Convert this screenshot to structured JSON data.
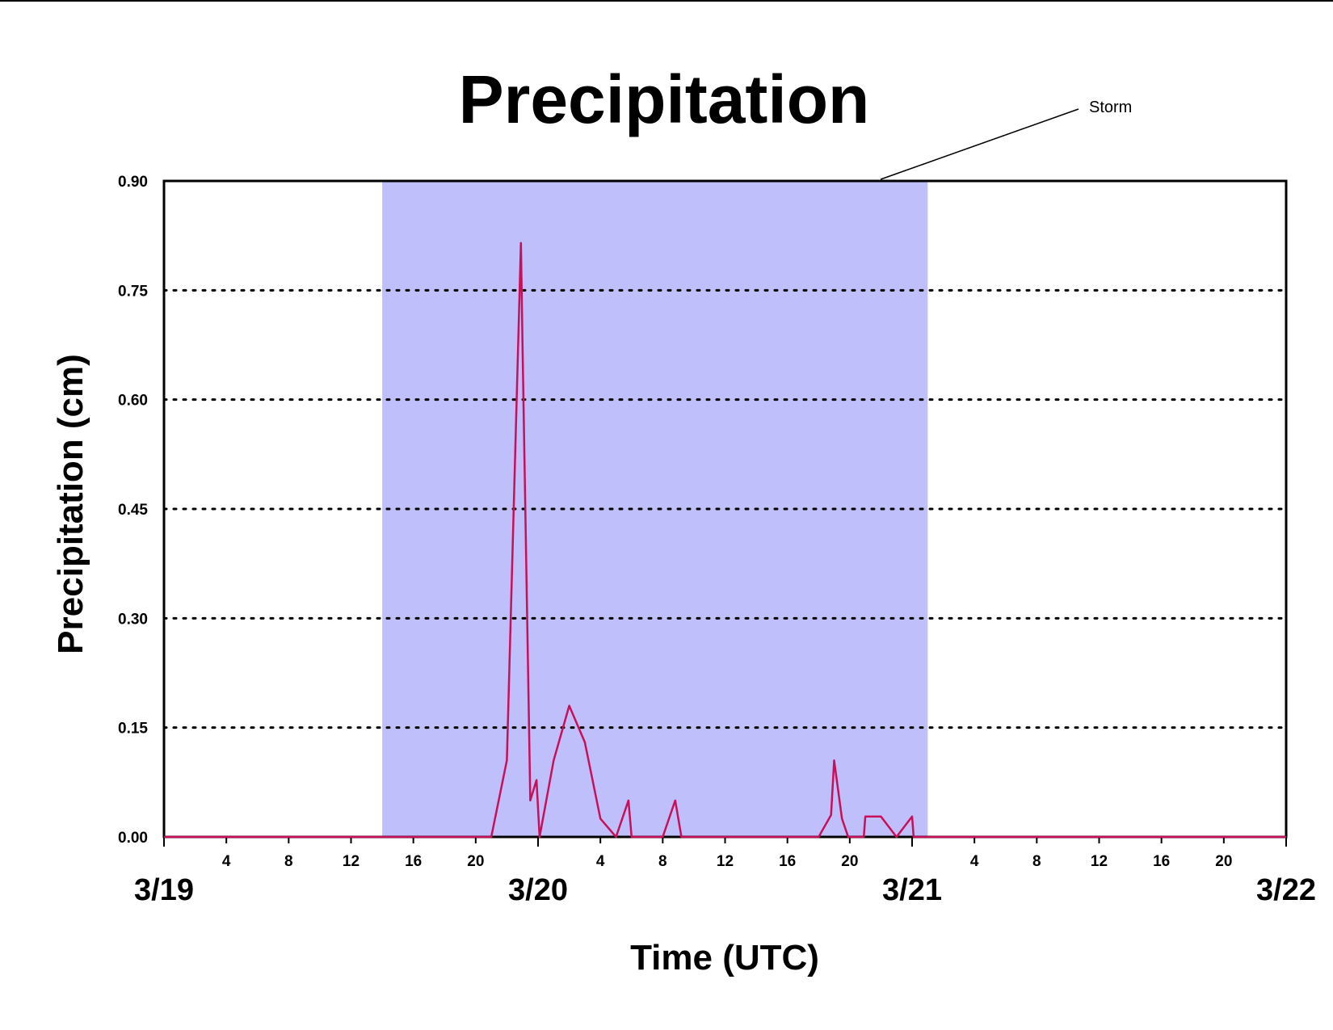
{
  "chart_data": {
    "type": "line",
    "title": "Precipitation",
    "xlabel": "Time (UTC)",
    "ylabel": "Precipitation (cm)",
    "x_unit": "hours (UTC) from 3/19 00:00",
    "xlim": [
      0,
      72
    ],
    "ylim": [
      0,
      0.9
    ],
    "y_ticks": [
      "0.00",
      "0.15",
      "0.30",
      "0.45",
      "0.60",
      "0.75",
      "0.90"
    ],
    "x_hour_ticks": [
      "4",
      "8",
      "12",
      "16",
      "20",
      "4",
      "8",
      "12",
      "16",
      "20",
      "4",
      "8",
      "12",
      "16",
      "20"
    ],
    "x_day_labels": [
      "3/19",
      "3/20",
      "3/21",
      "3/22"
    ],
    "grid": "horizontal dotted",
    "legend": "none",
    "shaded_region": {
      "label": "Storm",
      "x_start": 14,
      "x_end": 49,
      "color": "#bfbffb"
    },
    "series": [
      {
        "color": "#c8105a",
        "points": [
          [
            0,
            0
          ],
          [
            21,
            0
          ],
          [
            22,
            0.105
          ],
          [
            22.9,
            0.815
          ],
          [
            23,
            0.68
          ],
          [
            23.5,
            0.05
          ],
          [
            23.9,
            0.078
          ],
          [
            24.1,
            0
          ],
          [
            25,
            0.105
          ],
          [
            26,
            0.18
          ],
          [
            27,
            0.13
          ],
          [
            28,
            0.025
          ],
          [
            29,
            0
          ],
          [
            29.8,
            0.05
          ],
          [
            30,
            0
          ],
          [
            32,
            0
          ],
          [
            32.8,
            0.05
          ],
          [
            33.2,
            0
          ],
          [
            42,
            0
          ],
          [
            42.8,
            0.03
          ],
          [
            43,
            0.105
          ],
          [
            43.5,
            0.025
          ],
          [
            43.9,
            0
          ],
          [
            44.9,
            0
          ],
          [
            45,
            0.028
          ],
          [
            46,
            0.028
          ],
          [
            47,
            0
          ],
          [
            48,
            0.028
          ],
          [
            48.1,
            0
          ],
          [
            72,
            0
          ]
        ]
      }
    ]
  }
}
